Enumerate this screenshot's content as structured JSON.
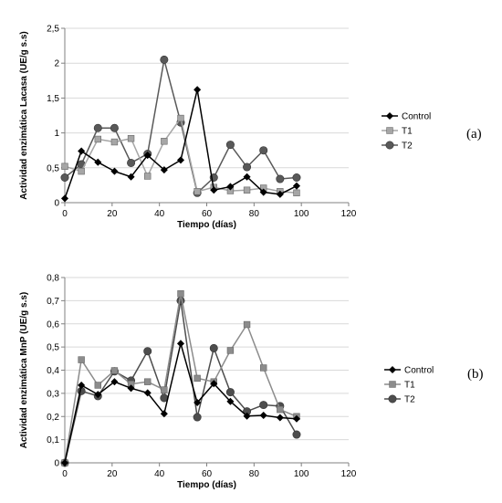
{
  "chart_data": [
    {
      "type": "line",
      "panel_label": "(a)",
      "xlabel": "Tiempo (días)",
      "ylabel": "Actividad enzimática Lacasa (UE/g s.s)",
      "xlim": [
        0,
        120
      ],
      "ylim": [
        0,
        2.5
      ],
      "xticks": [
        0,
        20,
        40,
        60,
        80,
        100,
        120
      ],
      "yticks": [
        0,
        0.5,
        1,
        1.5,
        2,
        2.5
      ],
      "ytick_labels": [
        "0",
        "0,5",
        "1",
        "1,5",
        "2",
        "2,5"
      ],
      "grid": "horizontal",
      "legend": "right",
      "series": [
        {
          "name": "Control",
          "marker": "diamond",
          "color": "#000000",
          "x": [
            0,
            7,
            14,
            21,
            28,
            35,
            42,
            49,
            56,
            63,
            70,
            77,
            84,
            91,
            98
          ],
          "y": [
            0.06,
            0.74,
            0.58,
            0.45,
            0.37,
            0.68,
            0.47,
            0.61,
            1.62,
            0.18,
            0.23,
            0.37,
            0.15,
            0.12,
            0.24
          ]
        },
        {
          "name": "T1",
          "marker": "square",
          "color": "#a6a6a6",
          "x": [
            0,
            7,
            14,
            21,
            28,
            35,
            42,
            49,
            56,
            63,
            70,
            77,
            84,
            91,
            98
          ],
          "y": [
            0.52,
            0.45,
            0.91,
            0.87,
            0.92,
            0.38,
            0.88,
            1.21,
            0.16,
            0.22,
            0.17,
            0.18,
            0.21,
            0.16,
            0.14
          ]
        },
        {
          "name": "T2",
          "marker": "circle",
          "color": "#595959",
          "x": [
            0,
            7,
            14,
            21,
            28,
            35,
            42,
            49,
            56,
            63,
            70,
            77,
            84,
            91,
            98
          ],
          "y": [
            0.36,
            0.55,
            1.07,
            1.07,
            0.57,
            0.7,
            2.05,
            1.15,
            0.14,
            0.36,
            0.83,
            0.51,
            0.75,
            0.34,
            0.36
          ]
        }
      ]
    },
    {
      "type": "line",
      "panel_label": "(b)",
      "xlabel": "Tiempo (días)",
      "ylabel": "Actividad enzimática MnP (UE/g s.s)",
      "xlim": [
        0,
        120
      ],
      "ylim": [
        0,
        0.8
      ],
      "xticks": [
        0,
        20,
        40,
        60,
        80,
        100,
        120
      ],
      "yticks": [
        0,
        0.1,
        0.2,
        0.3,
        0.4,
        0.5,
        0.6,
        0.7,
        0.8
      ],
      "ytick_labels": [
        "0",
        "0,1",
        "0,2",
        "0,3",
        "0,4",
        "0,5",
        "0,6",
        "0,7",
        "0,8"
      ],
      "grid": "horizontal",
      "legend": "right",
      "series": [
        {
          "name": "Control",
          "marker": "diamond",
          "color": "#000000",
          "x": [
            0,
            7,
            14,
            21,
            28,
            35,
            42,
            49,
            56,
            63,
            70,
            77,
            84,
            91,
            98
          ],
          "y": [
            0.0,
            0.335,
            0.295,
            0.35,
            0.322,
            0.302,
            0.212,
            0.515,
            0.26,
            0.342,
            0.265,
            0.202,
            0.205,
            0.195,
            0.19
          ]
        },
        {
          "name": "T1",
          "marker": "square",
          "color": "#8c8c8c",
          "x": [
            0,
            7,
            14,
            21,
            28,
            35,
            42,
            49,
            56,
            63,
            70,
            77,
            84,
            91,
            98
          ],
          "y": [
            0.0,
            0.445,
            0.335,
            0.398,
            0.34,
            0.35,
            0.315,
            0.73,
            0.365,
            0.35,
            0.485,
            0.597,
            0.41,
            0.23,
            0.2
          ]
        },
        {
          "name": "T2",
          "marker": "circle",
          "color": "#4d4d4d",
          "x": [
            0,
            7,
            14,
            21,
            28,
            35,
            42,
            49,
            56,
            63,
            70,
            77,
            84,
            91,
            98
          ],
          "y": [
            0.0,
            0.31,
            0.288,
            0.395,
            0.355,
            0.482,
            0.28,
            0.7,
            0.197,
            0.495,
            0.305,
            0.222,
            0.25,
            0.245,
            0.122
          ]
        }
      ]
    }
  ]
}
